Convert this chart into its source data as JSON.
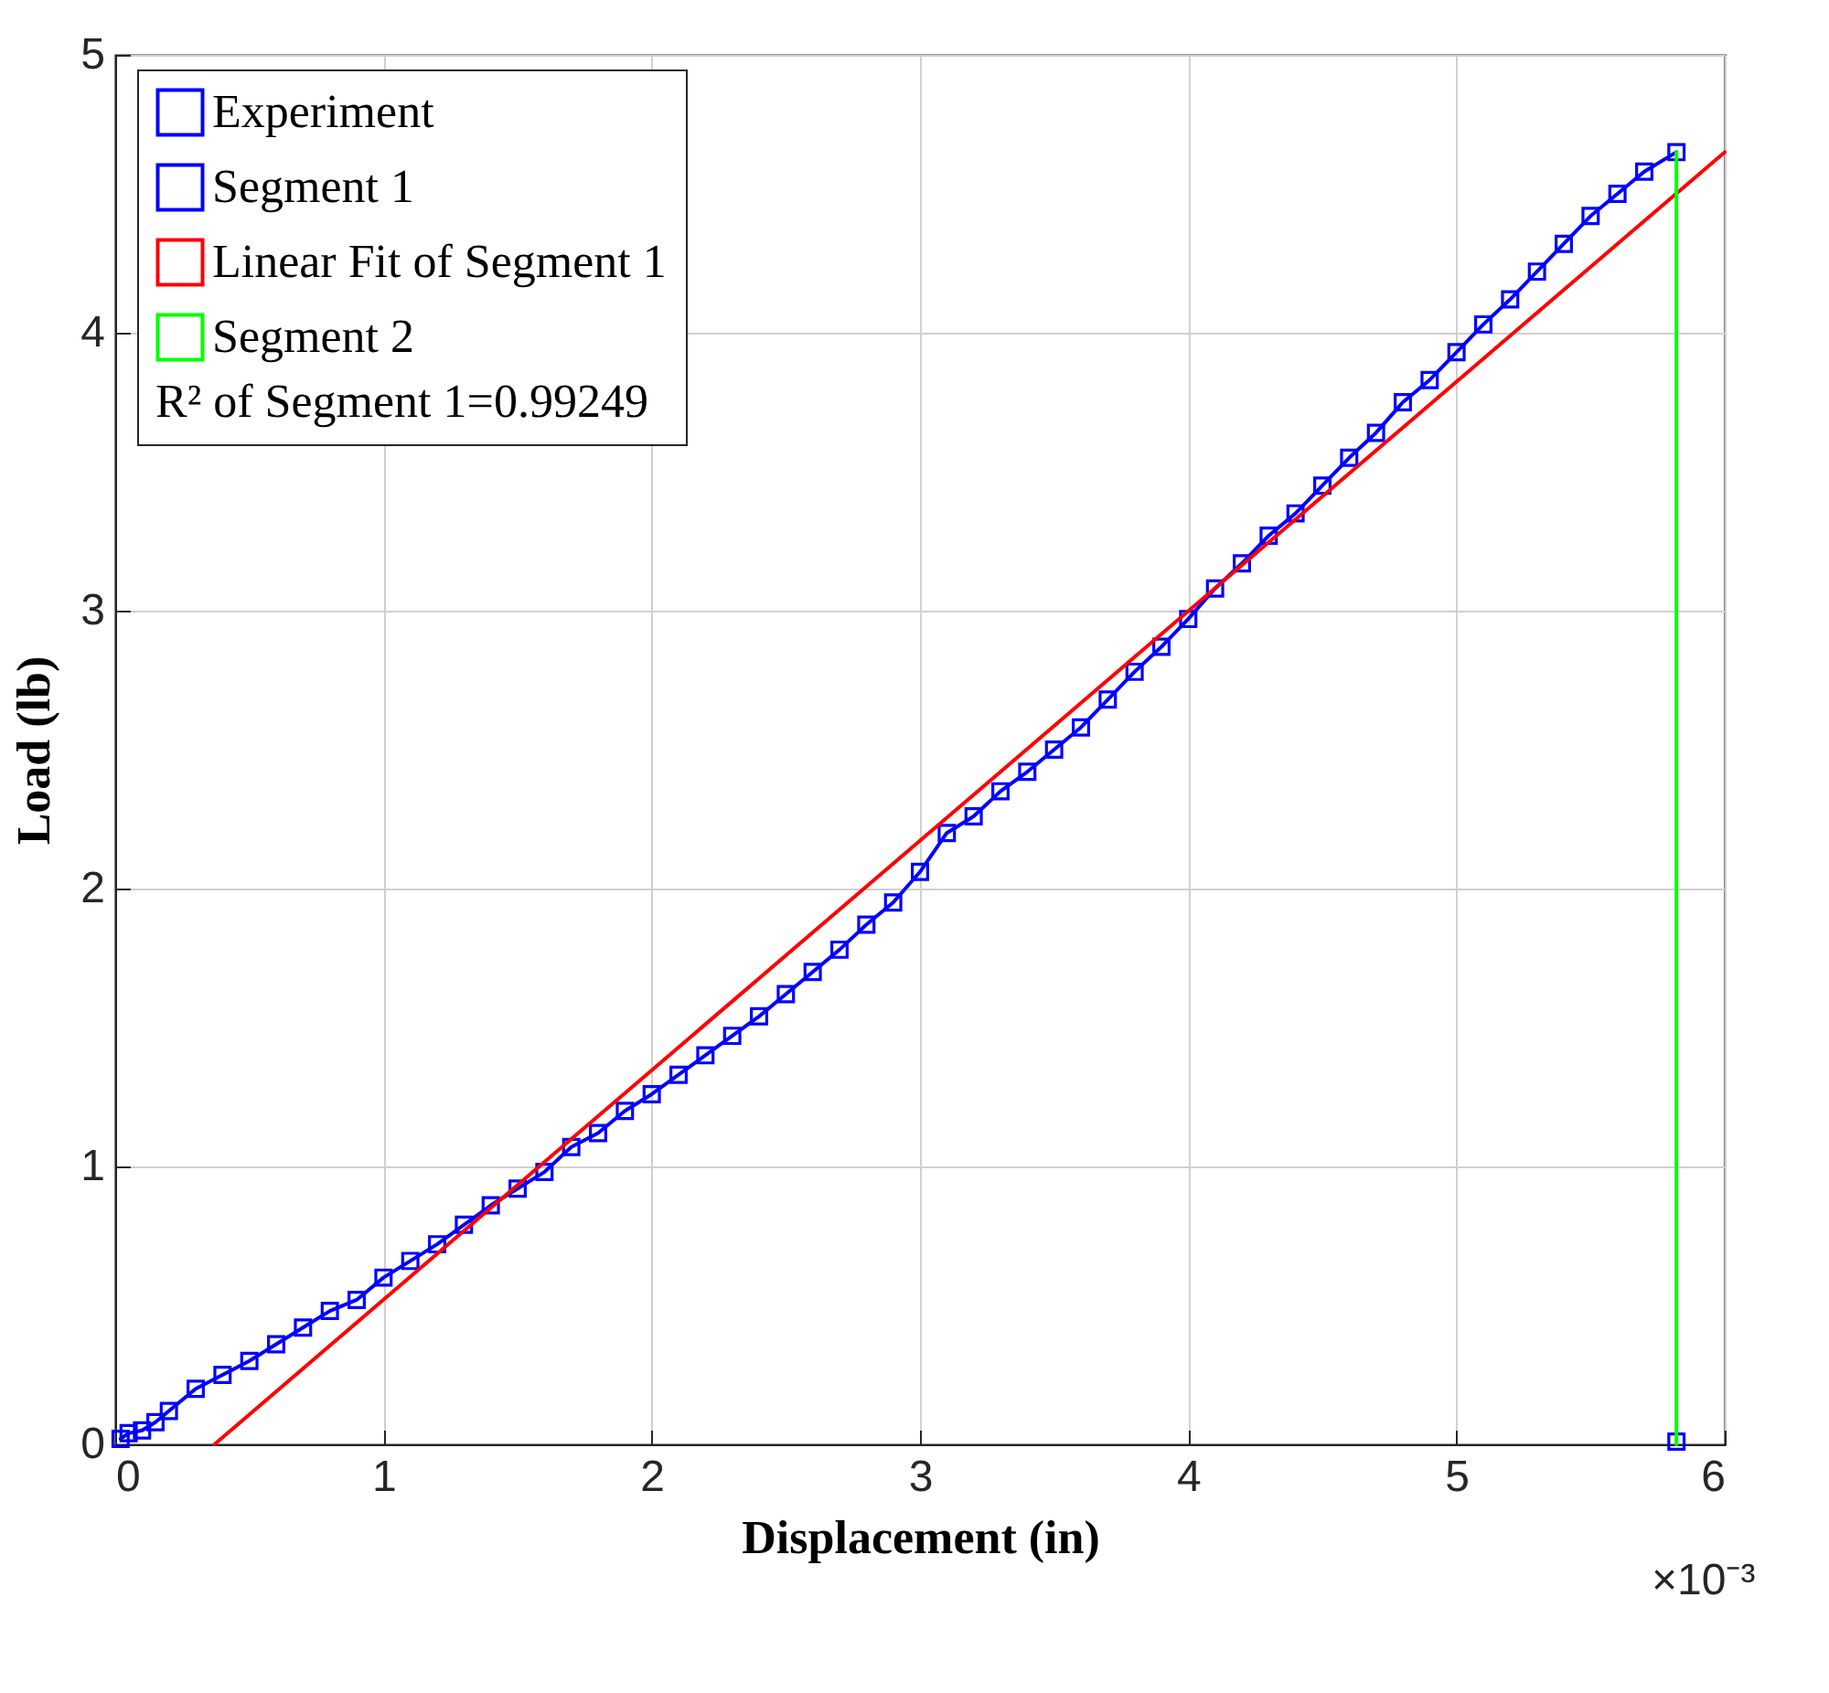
{
  "chart_data": {
    "type": "scatter",
    "xlabel": "Displacement (in)",
    "ylabel": "Load (lb)",
    "xlim": [
      0,
      6
    ],
    "ylim": [
      0,
      5
    ],
    "xticks": [
      0,
      1,
      2,
      3,
      4,
      5,
      6
    ],
    "yticks": [
      0,
      1,
      2,
      3,
      4,
      5
    ],
    "grid": true,
    "legend": "top left",
    "annotations": [
      "R² of Segment 1=0.99249",
      "×10⁻³"
    ],
    "series": [
      {
        "name": "Experiment",
        "color": "#0000ff",
        "marker": "square",
        "x": [
          0.02,
          0.05,
          0.1,
          0.15,
          0.2,
          0.3,
          0.4,
          0.5,
          0.6,
          0.7,
          0.8,
          0.9,
          1.0,
          1.1,
          1.2,
          1.3,
          1.4,
          1.5,
          1.6,
          1.7,
          1.8,
          1.9,
          2.0,
          2.1,
          2.2,
          2.3,
          2.4,
          2.5,
          2.6,
          2.7,
          2.8,
          2.9,
          3.0,
          3.1,
          3.2,
          3.3,
          3.4,
          3.5,
          3.6,
          3.7,
          3.8,
          3.9,
          4.0,
          4.1,
          4.2,
          4.3,
          4.4,
          4.5,
          4.6,
          4.7,
          4.8,
          4.9,
          5.0,
          5.1,
          5.2,
          5.3,
          5.4,
          5.5,
          5.6,
          5.7,
          5.82,
          5.82
        ],
        "values": [
          0.02,
          0.04,
          0.05,
          0.08,
          0.12,
          0.2,
          0.25,
          0.3,
          0.36,
          0.42,
          0.48,
          0.52,
          0.6,
          0.66,
          0.72,
          0.79,
          0.86,
          0.92,
          0.98,
          1.07,
          1.12,
          1.2,
          1.26,
          1.33,
          1.4,
          1.47,
          1.54,
          1.62,
          1.7,
          1.78,
          1.87,
          1.95,
          2.06,
          2.2,
          2.26,
          2.35,
          2.42,
          2.5,
          2.58,
          2.68,
          2.78,
          2.87,
          2.97,
          3.08,
          3.17,
          3.27,
          3.35,
          3.45,
          3.55,
          3.64,
          3.75,
          3.83,
          3.93,
          4.03,
          4.12,
          4.22,
          4.32,
          4.42,
          4.5,
          4.58,
          4.65,
          0.01
        ]
      },
      {
        "name": "Segment 1",
        "type": "line",
        "marker": "none",
        "color": "#0000ff",
        "x": [
          0.02,
          0.05,
          0.1,
          0.15,
          0.2,
          0.3,
          0.4,
          0.5,
          0.6,
          0.7,
          0.8,
          0.9,
          1.0,
          1.1,
          1.2,
          1.3,
          1.4,
          1.5,
          1.6,
          1.7,
          1.8,
          1.9,
          2.0,
          2.1,
          2.2,
          2.3,
          2.4,
          2.5,
          2.6,
          2.7,
          2.8,
          2.9,
          3.0,
          3.1,
          3.2,
          3.3,
          3.4,
          3.5,
          3.6,
          3.7,
          3.8,
          3.9,
          4.0,
          4.1,
          4.2,
          4.3,
          4.4,
          4.5,
          4.6,
          4.7,
          4.8,
          4.9,
          5.0,
          5.1,
          5.2,
          5.3,
          5.4,
          5.5,
          5.6,
          5.7,
          5.82
        ],
        "values": [
          0.02,
          0.04,
          0.05,
          0.08,
          0.12,
          0.2,
          0.25,
          0.3,
          0.36,
          0.42,
          0.48,
          0.52,
          0.6,
          0.66,
          0.72,
          0.79,
          0.86,
          0.92,
          0.98,
          1.07,
          1.12,
          1.2,
          1.26,
          1.33,
          1.4,
          1.47,
          1.54,
          1.62,
          1.7,
          1.78,
          1.87,
          1.95,
          2.06,
          2.2,
          2.26,
          2.35,
          2.42,
          2.5,
          2.58,
          2.68,
          2.78,
          2.87,
          2.97,
          3.08,
          3.17,
          3.27,
          3.35,
          3.45,
          3.55,
          3.64,
          3.75,
          3.83,
          3.93,
          4.03,
          4.12,
          4.22,
          4.32,
          4.42,
          4.5,
          4.58,
          4.65
        ]
      },
      {
        "name": "Linear Fit of Segment 1",
        "type": "line",
        "marker": "none",
        "color": "#ff0000",
        "x": [
          0.37,
          6
        ],
        "values": [
          0,
          4.65
        ]
      },
      {
        "name": "Segment 2",
        "type": "line",
        "marker": "none",
        "color": "#00ff00",
        "x": [
          5.82,
          5.82
        ],
        "values": [
          4.65,
          0
        ]
      }
    ]
  }
}
